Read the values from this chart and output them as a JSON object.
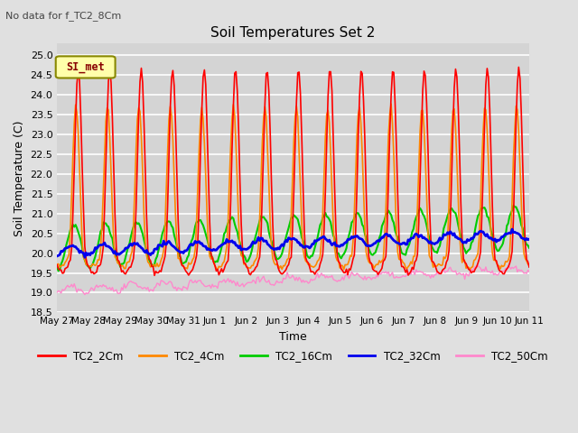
{
  "title": "Soil Temperatures Set 2",
  "top_left_note": "No data for f_TC2_8Cm",
  "ylabel": "Soil Temperature (C)",
  "xlabel": "Time",
  "ylim": [
    18.5,
    25.3
  ],
  "background_color": "#e0e0e0",
  "plot_bg_color": "#d4d4d4",
  "grid_color": "#ffffff",
  "series_colors": {
    "TC2_2Cm": "#ff0000",
    "TC2_4Cm": "#ff8800",
    "TC2_16Cm": "#00cc00",
    "TC2_32Cm": "#0000ee",
    "TC2_50Cm": "#ff88cc"
  },
  "x_tick_labels": [
    "May 27",
    "May 28",
    "May 29",
    "May 30",
    "May 31",
    "Jun 1",
    "Jun 2",
    "Jun 3",
    "Jun 4",
    "Jun 5",
    "Jun 6",
    "Jun 7",
    "Jun 8",
    "Jun 9",
    "Jun 10",
    "Jun 11"
  ],
  "legend_label": "SI_met",
  "legend_bg": "#ffffaa",
  "legend_border": "#888800",
  "n_days": 15,
  "n_pts": 360
}
